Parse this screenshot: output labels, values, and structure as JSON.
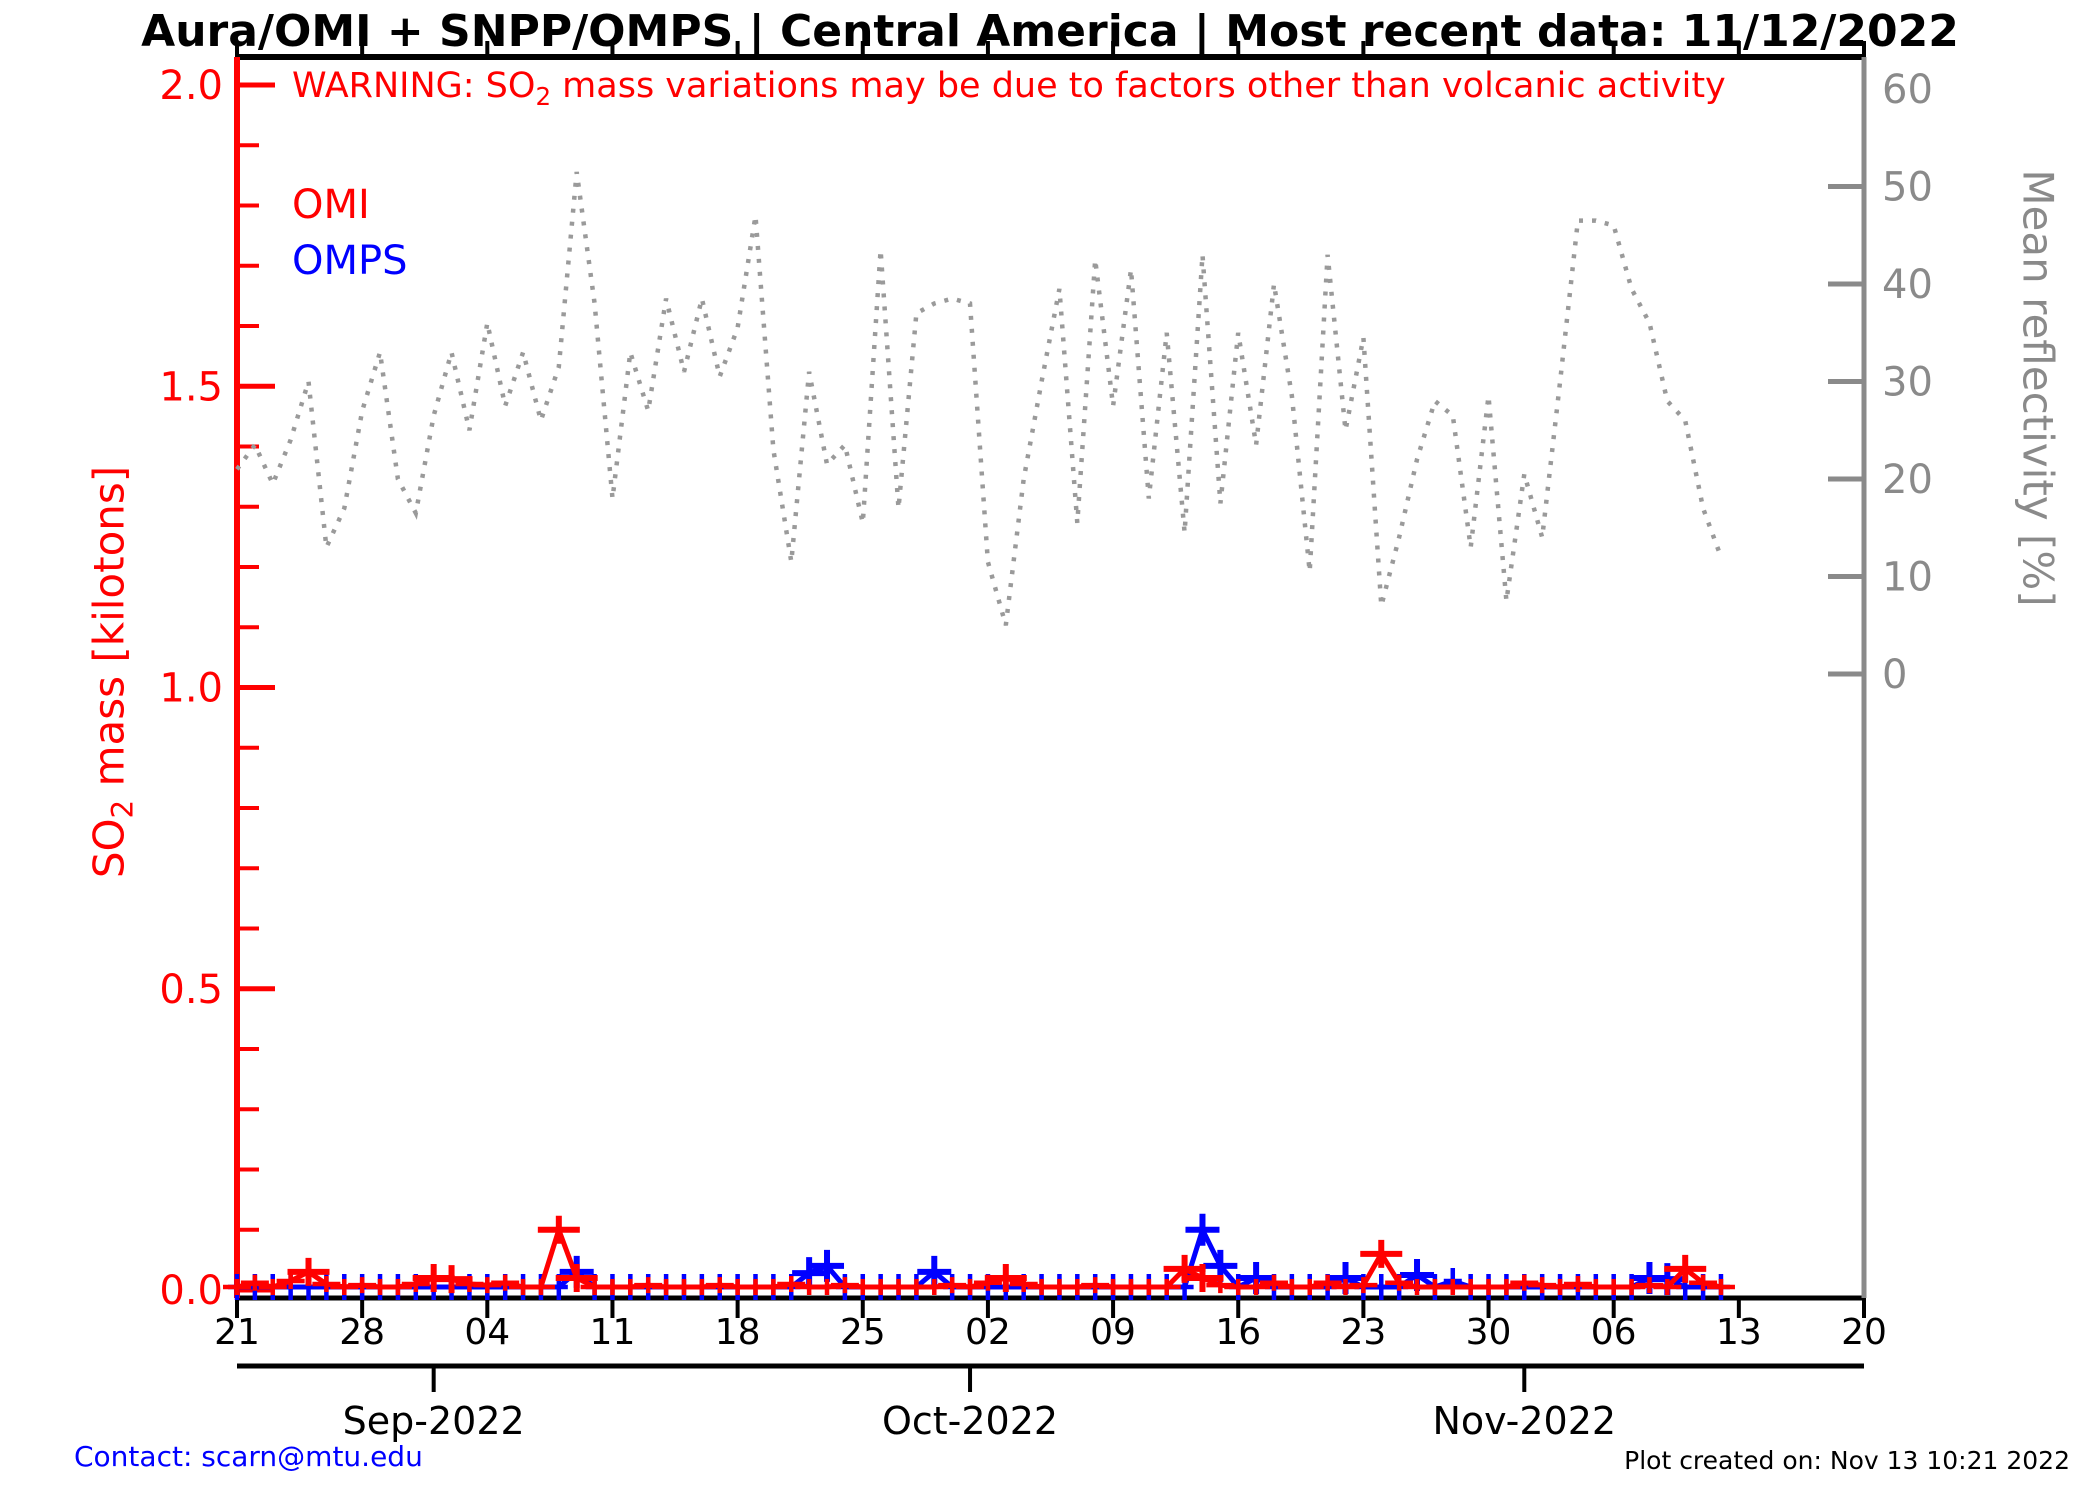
{
  "title": "Aura/OMI + SNPP/OMPS | Central America | Most recent data: 11/12/2022",
  "warning": {
    "pre": "WARNING: SO",
    "sub": "2",
    "post": " mass variations may be due to factors other than volcanic activity"
  },
  "legend": {
    "omi": "OMI",
    "omps": "OMPS"
  },
  "left_axis": {
    "label_pre": "SO",
    "label_sub": "2",
    "label_post": " mass [kilotons]",
    "color": "#ff0000",
    "tick_values": [
      0.0,
      0.5,
      1.0,
      1.5,
      2.0
    ],
    "minor_step": 0.1,
    "range": [
      0,
      2
    ]
  },
  "right_axis": {
    "label": "Mean reflectivity [%]",
    "color": "#8a8a8a",
    "tick_values": [
      0,
      10,
      20,
      30,
      40,
      50,
      60
    ],
    "range": [
      0,
      60
    ]
  },
  "x_axis": {
    "week_labels": [
      "21",
      "28",
      "04",
      "11",
      "18",
      "25",
      "02",
      "09",
      "16",
      "23",
      "30",
      "06",
      "13",
      "20"
    ],
    "week_days": [
      0,
      7,
      14,
      21,
      28,
      35,
      42,
      49,
      56,
      63,
      70,
      77,
      84,
      91
    ],
    "month_labels": [
      {
        "label": "Sep-2022",
        "day": 11
      },
      {
        "label": "Oct-2022",
        "day": 41
      },
      {
        "label": "Nov-2022",
        "day": 72
      }
    ],
    "total_days": 91
  },
  "footer": {
    "contact": "Contact: scarn@mtu.edu",
    "created": "Plot created on: Nov 13 10:21 2022"
  },
  "chart_data": {
    "type": "line",
    "title": "Aura/OMI + SNPP/OMPS | Central America | Most recent data: 11/12/2022",
    "x_unit": "days, daily samples starting Aug 21 2022 (x tick '21') through Nov 12 2022",
    "legend_position": "top-left",
    "grid": false,
    "series": [
      {
        "name": "Mean reflectivity",
        "axis": "right",
        "unit": "%",
        "style": "dotted",
        "color": "#9a9a9a",
        "ylim": [
          0,
          60
        ],
        "values": [
          21,
          23.5,
          19.5,
          24,
          30,
          13,
          17,
          27,
          33,
          20,
          16.5,
          26.5,
          33,
          25,
          36,
          27.5,
          33,
          26,
          31.5,
          51.5,
          38,
          18,
          33,
          27,
          38.5,
          31,
          38.5,
          30.5,
          35.5,
          47,
          23,
          11.5,
          31,
          21.5,
          23.5,
          15.5,
          43.5,
          17,
          37,
          38,
          38.5,
          38,
          11.5,
          5,
          20,
          30,
          39.5,
          15.5,
          42.5,
          27.5,
          41.5,
          18,
          35,
          14.5,
          43,
          17.5,
          35,
          23.5,
          40,
          28.5,
          10.5,
          43,
          25,
          34.5,
          7,
          14,
          22,
          28,
          26.5,
          13,
          28.5,
          7.5,
          20.5,
          14,
          30,
          46.5,
          46.5,
          46,
          39.5,
          36,
          28,
          26,
          17,
          12
        ]
      },
      {
        "name": "OMI",
        "axis": "left",
        "unit": "kilotons",
        "style": "plus-markers",
        "color": "#ff0000",
        "ylim": [
          0,
          2
        ],
        "values": [
          0.005,
          0.012,
          0.005,
          0.015,
          0.03,
          0.01,
          0.005,
          0.008,
          0.005,
          0.005,
          0.01,
          0.02,
          0.018,
          0.01,
          0.008,
          0.012,
          0.005,
          0.005,
          0.1,
          0.02,
          0.005,
          0.005,
          0.005,
          0.008,
          0.005,
          0.005,
          0.005,
          0.008,
          0.005,
          0.005,
          0.005,
          0.01,
          0.005,
          0.005,
          0.008,
          0.005,
          0.005,
          0.005,
          0.005,
          0.005,
          0.008,
          0.005,
          0.012,
          0.02,
          0.01,
          0.005,
          0.005,
          0.005,
          0.008,
          0.005,
          0.005,
          0.005,
          0.005,
          0.035,
          0.02,
          0.008,
          0.005,
          0.005,
          0.012,
          0.005,
          0.005,
          0.012,
          0.005,
          0.008,
          0.06,
          0.012,
          0.005,
          0.005,
          0.005,
          0.005,
          0.005,
          0.005,
          0.012,
          0.008,
          0.005,
          0.01,
          0.005,
          0.005,
          0.005,
          0.008,
          0.005,
          0.035,
          0.012,
          0.005
        ]
      },
      {
        "name": "OMPS",
        "axis": "left",
        "unit": "kilotons",
        "style": "plus-markers",
        "color": "#0000ff",
        "ylim": [
          0,
          2
        ],
        "values": [
          0.005,
          0.005,
          0.005,
          0.005,
          0.005,
          0.005,
          0.005,
          0.005,
          0.005,
          0.005,
          0.005,
          0.005,
          0.005,
          0.005,
          0.005,
          0.005,
          0.005,
          0.005,
          0.005,
          0.03,
          0.005,
          0.005,
          0.005,
          0.005,
          0.005,
          0.005,
          0.005,
          0.005,
          0.005,
          0.005,
          0.005,
          0.005,
          0.028,
          0.04,
          0.005,
          0.005,
          0.005,
          0.005,
          0.005,
          0.03,
          0.005,
          0.005,
          0.005,
          0.005,
          0.005,
          0.005,
          0.005,
          0.005,
          0.005,
          0.005,
          0.005,
          0.005,
          0.005,
          0.005,
          0.1,
          0.04,
          0.005,
          0.02,
          0.005,
          0.005,
          0.005,
          0.005,
          0.02,
          0.005,
          0.005,
          0.005,
          0.025,
          0.005,
          0.015,
          0.005,
          0.005,
          0.005,
          0.005,
          0.005,
          0.005,
          0.005,
          0.005,
          0.005,
          0.005,
          0.02,
          0.018,
          0.005,
          0.005,
          0.005
        ]
      }
    ]
  }
}
